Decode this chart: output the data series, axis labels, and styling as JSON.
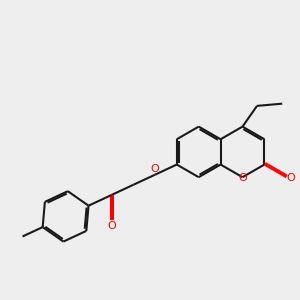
{
  "background_color": "#eeeeee",
  "bond_color": "#1a1a1a",
  "oxygen_color": "#ff0000",
  "figsize": [
    3.0,
    3.0
  ],
  "dpi": 100,
  "BL": 0.4,
  "xlim": [
    -2.3,
    2.4
  ],
  "ylim": [
    -1.6,
    1.9
  ]
}
